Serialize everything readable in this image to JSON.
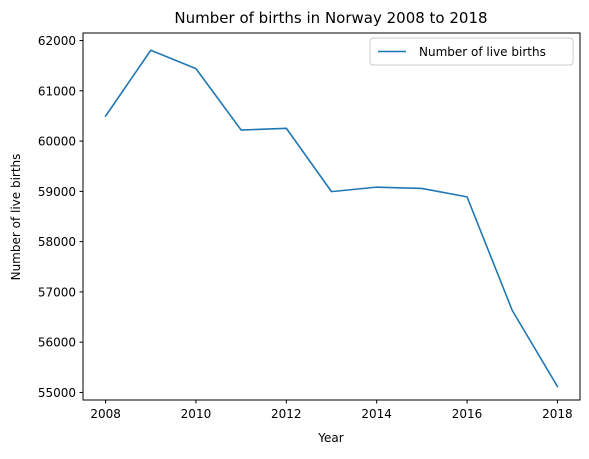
{
  "chart_data": {
    "type": "line",
    "title": "Number of births in Norway 2008 to 2018",
    "xlabel": "Year",
    "ylabel": "Number of live births",
    "x": [
      2008,
      2009,
      2010,
      2011,
      2012,
      2013,
      2014,
      2015,
      2016,
      2017,
      2018
    ],
    "series": [
      {
        "name": "Number of live births",
        "color": "#1f77b4",
        "values": [
          60497,
          61807,
          61442,
          60220,
          60255,
          58995,
          59084,
          59058,
          58890,
          56633,
          55120
        ]
      }
    ],
    "xlim": [
      2007.5,
      2018.5
    ],
    "ylim": [
      54850,
      62150
    ],
    "xticks": [
      2008,
      2010,
      2012,
      2014,
      2016,
      2018
    ],
    "yticks": [
      55000,
      56000,
      57000,
      58000,
      59000,
      60000,
      61000,
      62000
    ],
    "grid": false,
    "legend_position": "top-right"
  }
}
